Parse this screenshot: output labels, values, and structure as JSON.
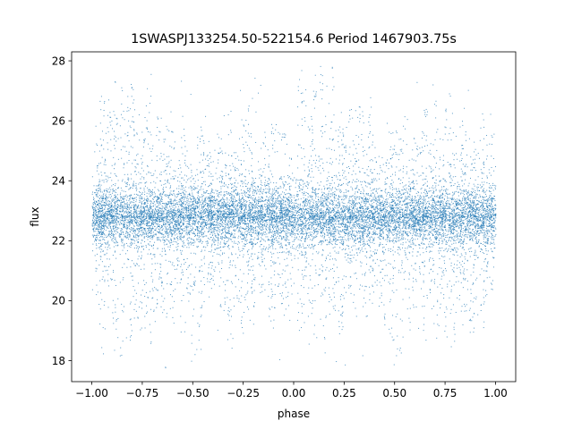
{
  "chart_data": {
    "type": "scatter",
    "title": "1SWASPJ133254.50-522154.6 Period 1467903.75s",
    "xlabel": "phase",
    "ylabel": "flux",
    "xlim": [
      -1.1,
      1.1
    ],
    "ylim": [
      17.3,
      28.3
    ],
    "xticks": [
      -1.0,
      -0.75,
      -0.5,
      -0.25,
      0.0,
      0.25,
      0.5,
      0.75,
      1.0
    ],
    "xtick_labels": [
      "−1.00",
      "−0.75",
      "−0.50",
      "−0.25",
      "0.00",
      "0.25",
      "0.50",
      "0.75",
      "1.00"
    ],
    "yticks": [
      18,
      20,
      22,
      24,
      26,
      28
    ],
    "ytick_labels": [
      "18",
      "20",
      "22",
      "24",
      "26",
      "28"
    ],
    "grid": false,
    "legend": "none",
    "marker_color": "#1f77b4",
    "series": [
      {
        "band_center_flux": 22.8,
        "band_half_width": 0.9,
        "x_range": [
          -1.0,
          1.0
        ],
        "y_range": [
          17.8,
          27.9
        ],
        "n_points_approx": 60000,
        "x": [
          -0.97,
          -0.95,
          -0.93,
          -0.9,
          -0.88,
          -0.85,
          -0.82,
          -0.8,
          -0.78,
          -0.75,
          -0.72,
          -0.7,
          -0.67,
          -0.65,
          -0.62,
          -0.6,
          -0.57,
          -0.55,
          -0.52,
          -0.5,
          -0.47,
          -0.45,
          -0.42,
          -0.4,
          -0.37,
          -0.35,
          -0.32,
          -0.3,
          -0.27,
          -0.25,
          -0.22,
          -0.2,
          -0.17,
          -0.15,
          -0.12,
          -0.1,
          -0.07,
          -0.05,
          -0.02,
          0.03,
          0.05,
          0.08,
          0.1,
          0.13,
          0.15,
          0.18,
          0.2,
          0.23,
          0.25,
          0.28,
          0.3,
          0.33,
          0.35,
          0.38,
          0.4,
          0.43,
          0.45,
          0.48,
          0.5,
          0.53,
          0.55,
          0.58,
          0.6,
          0.63,
          0.65,
          0.68,
          0.7,
          0.73,
          0.75,
          0.78,
          0.8,
          0.83,
          0.85,
          0.88,
          0.9,
          0.93,
          0.95,
          0.98
        ],
        "y_max": [
          25.4,
          27.2,
          27.8,
          26.8,
          27.5,
          27.9,
          27.0,
          27.6,
          25.8,
          26.5,
          27.7,
          25.9,
          26.2,
          25.5,
          24.9,
          25.7,
          24.8,
          26.0,
          25.2,
          24.6,
          25.9,
          26.3,
          25.0,
          24.7,
          25.6,
          25.3,
          26.4,
          25.1,
          24.9,
          26.0,
          27.2,
          25.5,
          24.6,
          25.8,
          25.1,
          25.9,
          24.4,
          25.6,
          24.8,
          27.3,
          27.8,
          26.2,
          27.6,
          27.9,
          27.2,
          26.7,
          27.9,
          26.3,
          25.8,
          26.5,
          27.1,
          26.6,
          25.4,
          26.9,
          25.7,
          25.2,
          24.8,
          26.0,
          25.7,
          25.5,
          26.3,
          24.9,
          25.6,
          25.8,
          26.5,
          25.3,
          27.3,
          25.1,
          26.7,
          27.0,
          25.5,
          26.2,
          25.7,
          26.1,
          25.4,
          25.9,
          26.1,
          25.6
        ],
        "y_min": [
          19.5,
          18.9,
          19.0,
          18.1,
          18.7,
          17.9,
          18.3,
          18.6,
          19.4,
          19.0,
          18.2,
          19.3,
          18.8,
          19.6,
          19.4,
          19.1,
          20.3,
          18.9,
          19.5,
          17.8,
          18.2,
          18.9,
          19.8,
          20.0,
          19.6,
          19.3,
          18.4,
          19.7,
          19.2,
          18.9,
          19.4,
          19.6,
          20.1,
          19.7,
          19.2,
          19.5,
          20.2,
          19.5,
          19.8,
          19.0,
          19.2,
          18.5,
          18.7,
          19.3,
          18.2,
          18.9,
          19.5,
          18.6,
          19.1,
          19.8,
          19.3,
          19.6,
          18.8,
          19.9,
          19.4,
          19.8,
          19.2,
          18.8,
          17.8,
          18.0,
          19.6,
          18.9,
          19.5,
          19.8,
          18.6,
          19.7,
          18.1,
          19.3,
          18.7,
          19.5,
          18.5,
          19.2,
          19.6,
          18.8,
          19.4,
          19.1,
          19.9,
          19.4
        ]
      }
    ]
  }
}
